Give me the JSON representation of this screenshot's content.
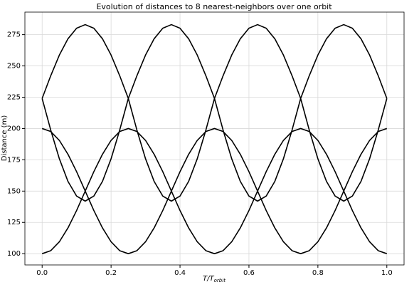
{
  "chart_data": {
    "type": "line",
    "title": "Evolution of distances to 8 nearest-neighbors over one orbit",
    "xlabel": {
      "main": "T/T",
      "sub": "orbit"
    },
    "ylabel": "Distance (m)",
    "x": [
      0,
      0.025,
      0.05,
      0.075,
      0.1,
      0.125,
      0.15,
      0.175,
      0.2,
      0.225,
      0.25,
      0.275,
      0.3,
      0.325,
      0.35,
      0.375,
      0.4,
      0.425,
      0.45,
      0.475,
      0.5,
      0.525,
      0.55,
      0.575,
      0.6,
      0.625,
      0.65,
      0.675,
      0.7,
      0.725,
      0.75,
      0.775,
      0.8,
      0.825,
      0.85,
      0.875,
      0.9,
      0.925,
      0.95,
      0.975,
      1
    ],
    "series": [
      {
        "color": "#000000",
        "values": [
          224,
          242.2,
          258.7,
          271.7,
          280.1,
          283,
          280.1,
          271.7,
          258.7,
          242.2,
          224,
          198.7,
          175.8,
          157.7,
          146,
          142,
          146,
          157.7,
          175.8,
          198.7,
          224,
          242.2,
          258.7,
          271.7,
          280.1,
          283,
          280.1,
          271.7,
          258.7,
          242.2,
          224,
          198.7,
          175.8,
          157.7,
          146,
          142,
          146,
          157.7,
          175.8,
          198.7,
          224
        ]
      },
      {
        "color": "#000000",
        "values": [
          224,
          198.7,
          175.8,
          157.7,
          146,
          142,
          146,
          157.7,
          175.8,
          198.7,
          224,
          242.2,
          258.7,
          271.7,
          280.1,
          283,
          280.1,
          271.7,
          258.7,
          242.2,
          224,
          198.7,
          175.8,
          157.7,
          146,
          142,
          146,
          157.7,
          175.8,
          198.7,
          224,
          242.2,
          258.7,
          271.7,
          280.1,
          283,
          280.1,
          271.7,
          258.7,
          242.2,
          224
        ]
      },
      {
        "color": "#000000",
        "values": [
          200,
          197.6,
          190.5,
          179.4,
          165.5,
          150,
          134.5,
          120.6,
          109.5,
          102.4,
          100,
          102.4,
          109.5,
          120.6,
          134.5,
          150,
          165.5,
          179.4,
          190.5,
          197.6,
          200,
          197.6,
          190.5,
          179.4,
          165.5,
          150,
          134.5,
          120.6,
          109.5,
          102.4,
          100,
          102.4,
          109.5,
          120.6,
          134.5,
          150,
          165.5,
          179.4,
          190.5,
          197.6,
          200
        ]
      },
      {
        "color": "#000000",
        "values": [
          100,
          102.4,
          109.5,
          120.6,
          134.5,
          150,
          165.5,
          179.4,
          190.5,
          197.6,
          200,
          197.6,
          190.5,
          179.4,
          165.5,
          150,
          134.5,
          120.6,
          109.5,
          102.4,
          100,
          102.4,
          109.5,
          120.6,
          134.5,
          150,
          165.5,
          179.4,
          190.5,
          197.6,
          200,
          197.6,
          190.5,
          179.4,
          165.5,
          150,
          134.5,
          120.6,
          109.5,
          102.4,
          100
        ]
      }
    ],
    "xlim": [
      -0.05,
      1.05
    ],
    "ylim": [
      91,
      293
    ],
    "xticks": [
      {
        "value": 0,
        "label": "0.0"
      },
      0.2,
      0.4,
      0.6,
      0.8,
      {
        "value": 1,
        "label": "1.0"
      }
    ],
    "yticks": [
      100,
      125,
      150,
      175,
      200,
      225,
      250,
      275
    ],
    "grid": true
  }
}
